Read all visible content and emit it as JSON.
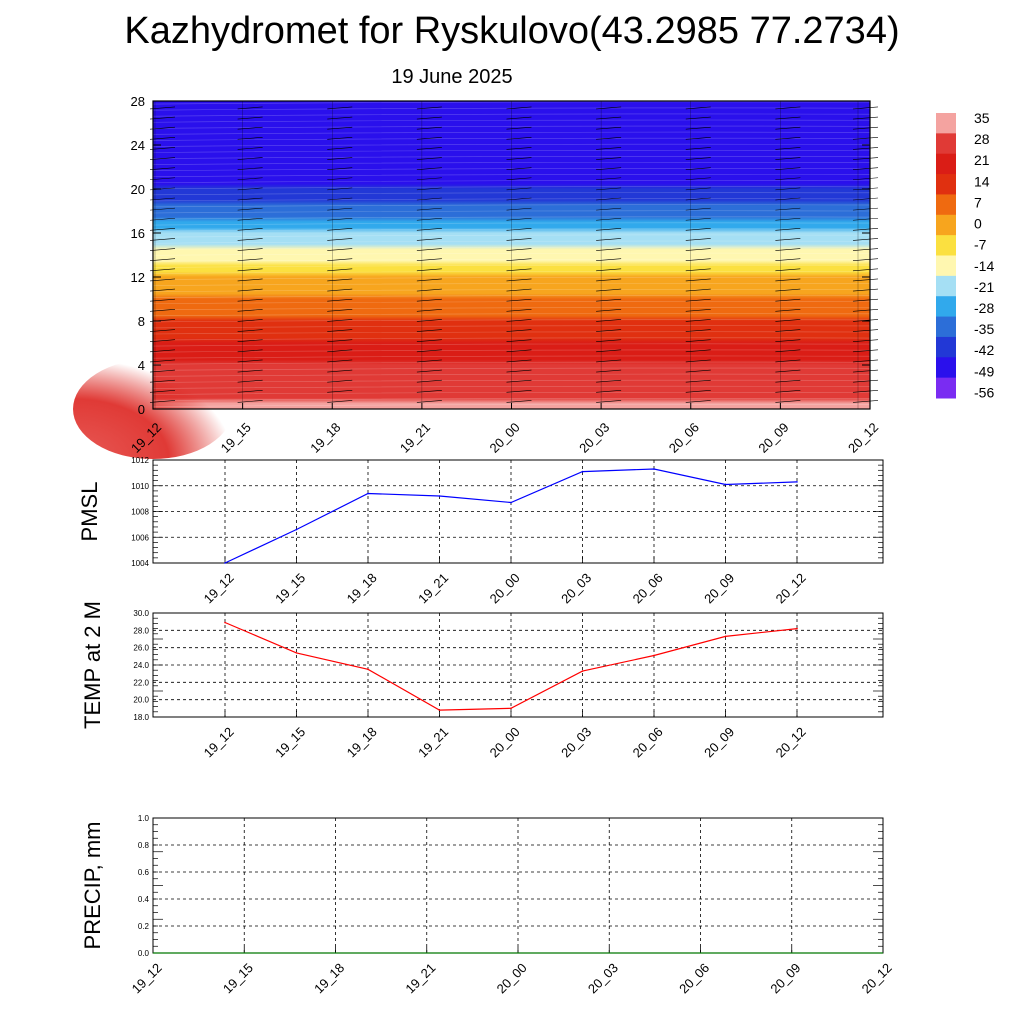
{
  "title": "Kazhydromet for Ryskulovo(43.2985 77.2734)",
  "subtitle": "19 June 2025",
  "chart_data": [
    {
      "type": "heatmap",
      "title": "",
      "x_ticks": [
        "19_12",
        "19_15",
        "19_18",
        "19_21",
        "20_00",
        "20_03",
        "20_06",
        "20_09",
        "20_12"
      ],
      "y_ticks": [
        0,
        4,
        8,
        12,
        16,
        20,
        24,
        28
      ],
      "ylim": [
        0,
        28
      ],
      "colorbar": {
        "labels": [
          "35",
          "28",
          "21",
          "14",
          "7",
          "0",
          "-7",
          "-14",
          "-21",
          "-28",
          "-35",
          "-42",
          "-49",
          "-56"
        ],
        "colors": [
          "#f4a3a0",
          "#e03a36",
          "#da1d16",
          "#e03010",
          "#ef6a10",
          "#f7a51e",
          "#fbe040",
          "#fff7b0",
          "#a5dff4",
          "#31a9ec",
          "#2c6ed8",
          "#2238d6",
          "#2a10ec",
          "#7a2cf2"
        ]
      },
      "temperature_profile": [
        {
          "height": 0,
          "temp": 30
        },
        {
          "height": 4,
          "temp": 21
        },
        {
          "height": 8,
          "temp": 7
        },
        {
          "height": 12,
          "temp": -7
        },
        {
          "height": 16,
          "temp": -28
        },
        {
          "height": 20,
          "temp": -49
        },
        {
          "height": 22,
          "temp": -56
        },
        {
          "height": 28,
          "temp": -56
        }
      ],
      "grid": false
    },
    {
      "type": "line",
      "ylabel": "PMSL",
      "categories": [
        "19_12",
        "19_15",
        "19_18",
        "19_21",
        "20_00",
        "20_03",
        "20_06",
        "20_09",
        "20_12"
      ],
      "values": [
        1004.0,
        1006.6,
        1009.4,
        1009.2,
        1008.7,
        1011.1,
        1011.3,
        1010.1,
        1010.3
      ],
      "y_ticks": [
        "1004",
        "1006",
        "1008",
        "1010",
        "1012"
      ],
      "ylim": [
        1004,
        1012
      ],
      "color": "#0000ff",
      "grid": true
    },
    {
      "type": "line",
      "ylabel": "TEMP at 2 M",
      "categories": [
        "19_12",
        "19_15",
        "19_18",
        "19_21",
        "20_00",
        "20_03",
        "20_06",
        "20_09",
        "20_12"
      ],
      "values": [
        28.9,
        25.4,
        23.5,
        18.8,
        19.0,
        23.3,
        25.1,
        27.3,
        28.2
      ],
      "y_ticks": [
        "18.0",
        "20.0",
        "22.0",
        "24.0",
        "26.0",
        "28.0",
        "30.0"
      ],
      "ylim": [
        18,
        30
      ],
      "color": "#ff0000",
      "grid": true
    },
    {
      "type": "bar",
      "ylabel": "PRECIP, mm",
      "categories": [
        "19_12",
        "19_15",
        "19_18",
        "19_21",
        "20_00",
        "20_03",
        "20_06",
        "20_09",
        "20_12"
      ],
      "values": [
        0,
        0,
        0,
        0,
        0,
        0,
        0,
        0,
        0
      ],
      "y_ticks": [
        "0.0",
        "0.2",
        "0.4",
        "0.6",
        "0.8",
        "1.0"
      ],
      "ylim": [
        0,
        1
      ],
      "color": "#007700",
      "grid": true
    }
  ]
}
